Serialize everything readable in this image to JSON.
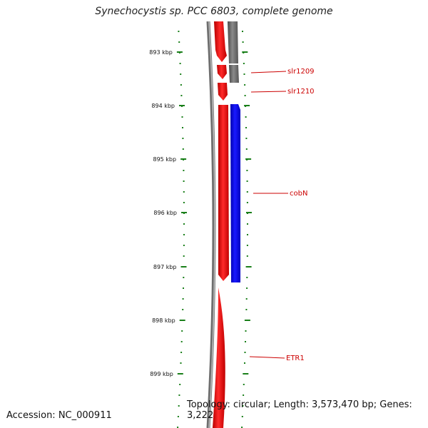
{
  "title": "Synechocystis sp. PCC 6803, complete genome",
  "ticks": [
    {
      "label": "893 kbp"
    },
    {
      "label": "894 kbp"
    },
    {
      "label": "895 kbp"
    },
    {
      "label": "896 kbp"
    },
    {
      "label": "897 kbp"
    },
    {
      "label": "898 kbp"
    },
    {
      "label": "899 kbp"
    }
  ],
  "genes": [
    {
      "name": "slr1209"
    },
    {
      "name": "slr1210"
    },
    {
      "name": "cobN"
    },
    {
      "name": "ETR1"
    }
  ],
  "colors": {
    "forward_strand": "#ff0000",
    "reverse_strand_cds": "#0000ff",
    "other_feature": "#666666",
    "backbone": "#808080",
    "tick": "#1a7f1a",
    "label": "#cc0000"
  },
  "footer": {
    "accession": "Accession: NC_000911",
    "topology": "Topology: circular; Length: 3,573,470 bp; Genes: 3,222"
  }
}
